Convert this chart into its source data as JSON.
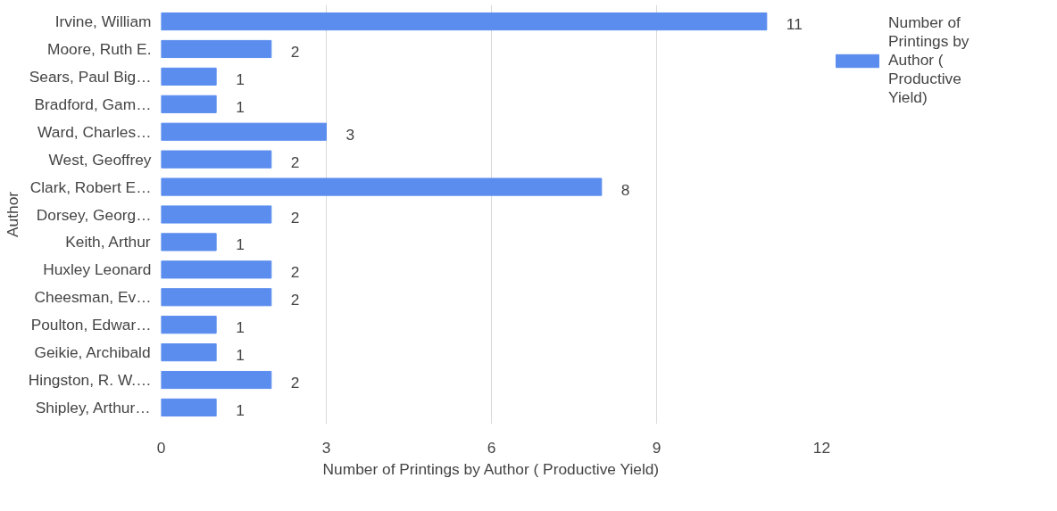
{
  "chart_data": {
    "type": "bar",
    "orientation": "horizontal",
    "xlabel": "Number of Printings by Author ( Productive Yield)",
    "ylabel": "Author",
    "categories": [
      "Irvine, William",
      "Moore, Ruth E.",
      "Sears, Paul Big…",
      "Bradford, Gam…",
      "Ward, Charles…",
      "West, Geoffrey",
      "Clark, Robert E…",
      "Dorsey, Georg…",
      "Keith, Arthur",
      "Huxley Leonard",
      "Cheesman, Ev…",
      "Poulton, Edwar…",
      "Geikie, Archibald",
      "Hingston, R. W.…",
      "Shipley, Arthur…"
    ],
    "series": [
      {
        "name": "Number of Printings by Author ( Productive Yield)",
        "color": "#5b8def",
        "values": [
          11,
          2,
          1,
          1,
          3,
          2,
          8,
          2,
          1,
          2,
          2,
          1,
          1,
          2,
          1
        ]
      }
    ],
    "xlim": [
      0,
      12
    ],
    "xticks": [
      0,
      3,
      6,
      9,
      12
    ],
    "grid": "x",
    "legend": "top right",
    "data_labels": true
  }
}
